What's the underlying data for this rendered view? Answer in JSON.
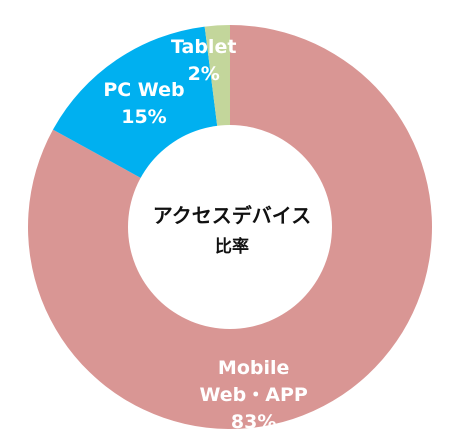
{
  "chart_data": {
    "type": "pie",
    "variant": "donut",
    "title": "",
    "center_label": [
      "アクセスデバイス",
      "比率"
    ],
    "slices": [
      {
        "name": "Mobile Web・APP",
        "label_lines": [
          "Mobile",
          "Web・APP"
        ],
        "value": 83,
        "value_label": "83%",
        "color": "#d99694"
      },
      {
        "name": "PC Web",
        "label_lines": [
          "PC Web"
        ],
        "value": 15,
        "value_label": "15%",
        "color": "#00b0f0"
      },
      {
        "name": "Tablet",
        "label_lines": [
          "Tablet"
        ],
        "value": 2,
        "value_label": "2%",
        "color": "#c3d69b"
      }
    ],
    "start_angle_deg": 0,
    "direction": "clockwise",
    "legend": "none"
  }
}
